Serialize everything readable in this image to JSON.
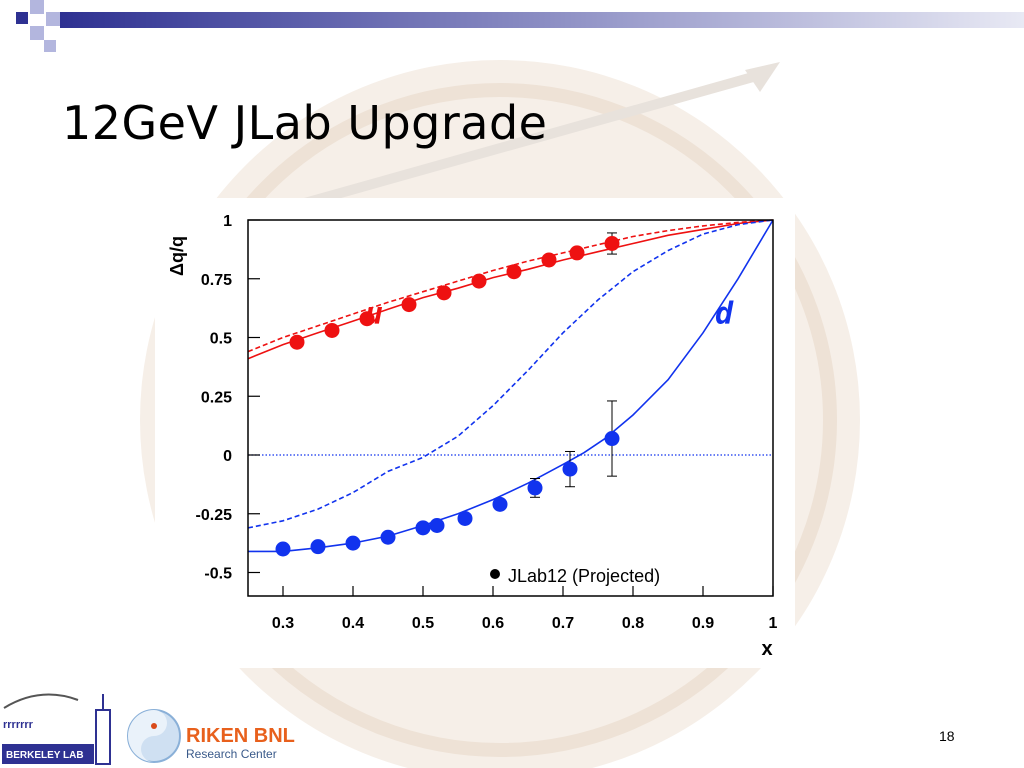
{
  "slide": {
    "title": "12GeV JLab Upgrade",
    "page_number": "18",
    "logos": {
      "lab_text": "BERKELEY LAB",
      "riken_name": "RIKEN BNL",
      "riken_sub": "Research Center"
    }
  },
  "colors": {
    "red": "#ee1111",
    "blue": "#1133ee",
    "header_bar": "#2e3192",
    "header_light": "#b3b6de"
  },
  "chart_data": {
    "type": "line",
    "xlabel": "x",
    "ylabel": "Δq/q",
    "xlim": [
      0.25,
      1.0
    ],
    "ylim": [
      -0.6,
      1.0
    ],
    "xticks": [
      "0.3",
      "0.4",
      "0.5",
      "0.6",
      "0.7",
      "0.8",
      "0.9",
      "1"
    ],
    "yticks": [
      "-0.5",
      "-0.25",
      "0",
      "0.25",
      "0.5",
      "0.75",
      "1"
    ],
    "xticks_values": [
      0.3,
      0.4,
      0.5,
      0.6,
      0.7,
      0.8,
      0.9,
      1.0
    ],
    "yticks_values": [
      -0.5,
      -0.25,
      0,
      0.25,
      0.5,
      0.75,
      1.0
    ],
    "annotations": [
      {
        "text": "u",
        "x": 0.43,
        "y": 0.56
      },
      {
        "text": "d",
        "x": 0.93,
        "y": 0.56
      }
    ],
    "legend": {
      "text": "JLab12 (Projected)",
      "position": "bottom-right"
    },
    "zero_line": true,
    "series": [
      {
        "color": "red",
        "style": "solid",
        "x": [
          0.25,
          0.3,
          0.35,
          0.4,
          0.45,
          0.5,
          0.55,
          0.6,
          0.65,
          0.7,
          0.75,
          0.8,
          0.85,
          0.9,
          0.95,
          1.0
        ],
        "y": [
          0.41,
          0.47,
          0.52,
          0.57,
          0.62,
          0.67,
          0.71,
          0.755,
          0.79,
          0.83,
          0.865,
          0.9,
          0.935,
          0.96,
          0.985,
          1.0
        ]
      },
      {
        "color": "red",
        "style": "dashed",
        "x": [
          0.25,
          0.3,
          0.35,
          0.4,
          0.45,
          0.5,
          0.55,
          0.6,
          0.65,
          0.7,
          0.75,
          0.8,
          0.85,
          0.9,
          0.95,
          1.0
        ],
        "y": [
          0.44,
          0.5,
          0.55,
          0.6,
          0.65,
          0.695,
          0.74,
          0.785,
          0.825,
          0.86,
          0.895,
          0.93,
          0.955,
          0.975,
          0.99,
          1.0
        ]
      },
      {
        "color": "blue",
        "style": "dashed",
        "x": [
          0.25,
          0.3,
          0.35,
          0.4,
          0.45,
          0.5,
          0.55,
          0.6,
          0.65,
          0.7,
          0.75,
          0.8,
          0.85,
          0.9,
          0.95,
          1.0
        ],
        "y": [
          -0.31,
          -0.28,
          -0.23,
          -0.16,
          -0.07,
          -0.01,
          0.08,
          0.21,
          0.36,
          0.52,
          0.66,
          0.78,
          0.87,
          0.94,
          0.98,
          1.0
        ]
      },
      {
        "color": "blue",
        "style": "solid",
        "x": [
          0.25,
          0.3,
          0.35,
          0.4,
          0.45,
          0.5,
          0.55,
          0.6,
          0.65,
          0.7,
          0.73,
          0.76,
          0.8,
          0.85,
          0.9,
          0.95,
          1.0
        ],
        "y": [
          -0.41,
          -0.41,
          -0.395,
          -0.375,
          -0.345,
          -0.3,
          -0.25,
          -0.19,
          -0.12,
          -0.04,
          0.01,
          0.07,
          0.17,
          0.32,
          0.52,
          0.75,
          1.0
        ]
      }
    ],
    "points": [
      {
        "name": "u",
        "color": "red",
        "x": [
          0.32,
          0.37,
          0.42,
          0.48,
          0.53,
          0.58,
          0.63,
          0.68,
          0.72,
          0.77
        ],
        "y": [
          0.48,
          0.53,
          0.58,
          0.64,
          0.69,
          0.74,
          0.78,
          0.83,
          0.86,
          0.9
        ],
        "err": [
          0,
          0,
          0,
          0,
          0,
          0,
          0,
          0,
          0,
          0.045
        ]
      },
      {
        "name": "d",
        "color": "blue",
        "x": [
          0.3,
          0.35,
          0.4,
          0.45,
          0.5,
          0.52,
          0.56,
          0.61,
          0.66,
          0.71,
          0.77
        ],
        "y": [
          -0.4,
          -0.39,
          -0.375,
          -0.35,
          -0.31,
          -0.3,
          -0.27,
          -0.21,
          -0.14,
          -0.06,
          0.07
        ],
        "err": [
          0,
          0,
          0,
          0,
          0,
          0,
          0,
          0.02,
          0.04,
          0.075,
          0.16
        ]
      }
    ]
  }
}
